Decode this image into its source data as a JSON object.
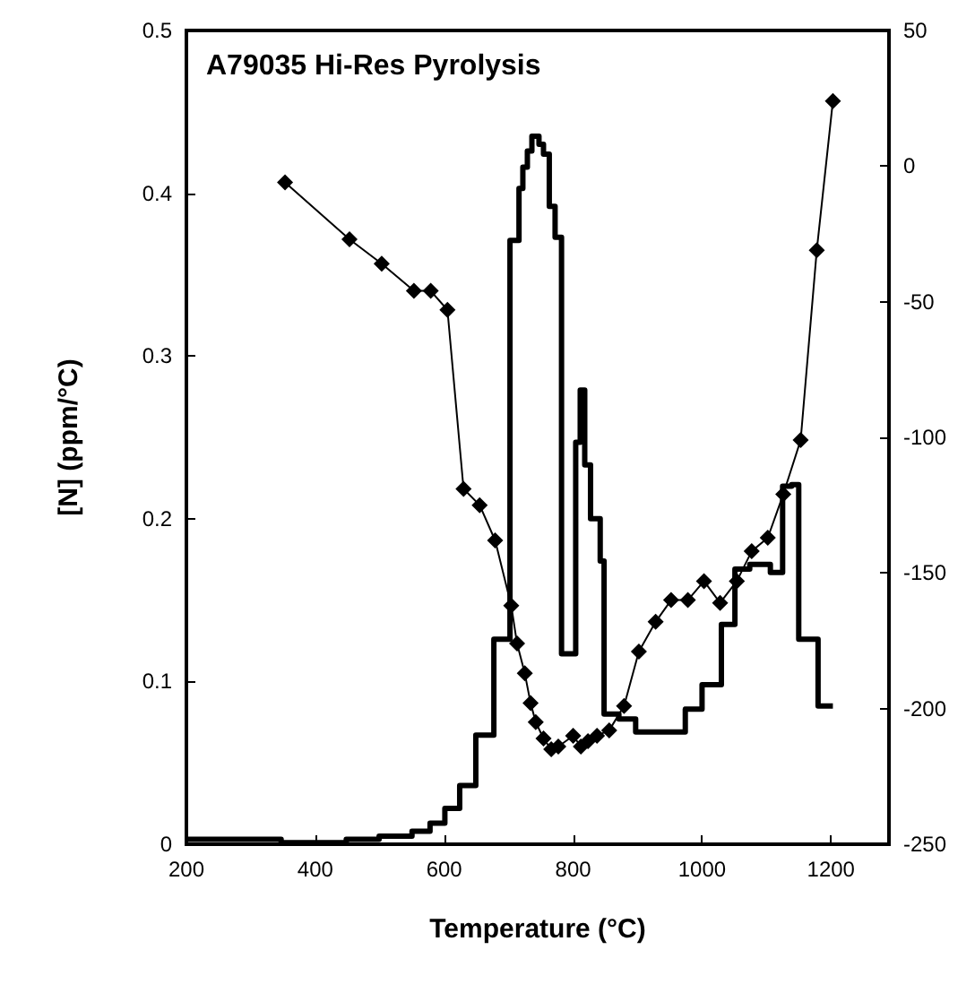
{
  "chart_data": {
    "type": "line",
    "title": "A79035 Hi-Res Pyrolysis",
    "xlabel": "Temperature (°C)",
    "ylabel": "[N] (ppm/°C)",
    "xlim": [
      200,
      1290
    ],
    "xticks": [
      200,
      400,
      600,
      800,
      1000,
      1200
    ],
    "ylim": [
      0,
      0.5
    ],
    "yticks": [
      0,
      0.1,
      0.2,
      0.3,
      0.4,
      0.5
    ],
    "y2lim": [
      -250,
      50
    ],
    "y2ticks": [
      -250,
      -200,
      -150,
      -100,
      -50,
      0,
      50
    ],
    "grid": false,
    "series": [
      {
        "type": "step",
        "color": "#000000",
        "marker": "none",
        "x": [
          200,
          347,
          448,
          499,
          550,
          578,
          601,
          624,
          649,
          677,
          702,
          716,
          722,
          729,
          736,
          747,
          754,
          763,
          772,
          782,
          804,
          811,
          818,
          827,
          842,
          848,
          871,
          897,
          974,
          1000,
          1030,
          1051,
          1074,
          1106,
          1125,
          1139,
          1150,
          1180,
          1203
        ],
        "values": [
          0.003,
          0.001,
          0.003,
          0.005,
          0.008,
          0.013,
          0.022,
          0.036,
          0.067,
          0.126,
          0.371,
          0.403,
          0.416,
          0.426,
          0.435,
          0.43,
          0.424,
          0.392,
          0.373,
          0.117,
          0.247,
          0.279,
          0.233,
          0.2,
          0.174,
          0.08,
          0.077,
          0.069,
          0.083,
          0.098,
          0.135,
          0.169,
          0.172,
          0.167,
          0.22,
          0.221,
          0.126,
          0.085,
          0.085
        ]
      },
      {
        "axis": "y2",
        "color": "#000000",
        "marker": "diamond",
        "line_style": "solid",
        "x": [
          353,
          453,
          503,
          553,
          579,
          605,
          630,
          655,
          679,
          704,
          713,
          725,
          734,
          742,
          754,
          766,
          777,
          800,
          812,
          823,
          837,
          856,
          879,
          902,
          928,
          952,
          978,
          1003,
          1028,
          1054,
          1077,
          1102,
          1126,
          1153,
          1178,
          1203
        ],
        "values": [
          -6,
          -27,
          -36,
          -46,
          -46,
          -53,
          -119,
          -125,
          -138,
          -162,
          -176,
          -187,
          -198,
          -205,
          -211,
          -215,
          -214,
          -210,
          -214,
          -212,
          -210,
          -208,
          -199,
          -179,
          -168,
          -160,
          -160,
          -153,
          -161,
          -153,
          -142,
          -137,
          -121,
          -101,
          -31,
          24
        ]
      }
    ]
  }
}
